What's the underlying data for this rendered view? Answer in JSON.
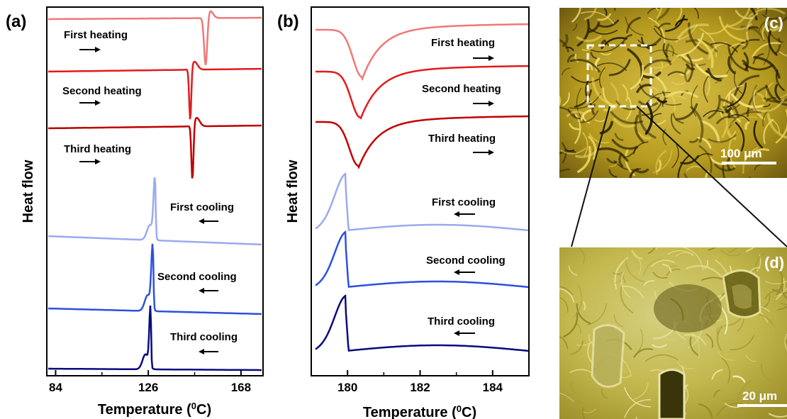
{
  "panels": {
    "a": "(a)",
    "b": "(b)",
    "c": "(c)",
    "d": "(d)"
  },
  "chart_data": [
    {
      "type": "line",
      "panel": "(a)",
      "xlabel": "Temperature (0C)",
      "xlabel_parts": {
        "pre": "Temperature (",
        "sup": "0",
        "post": "C)"
      },
      "ylabel": "Heat flow",
      "xlim": [
        80,
        178
      ],
      "xticks": [
        84,
        126,
        168
      ],
      "y_axis_values": false,
      "series": [
        {
          "name": "First heating",
          "direction": "→",
          "color": "#f07878",
          "kind": "endo",
          "peak_x": 152,
          "depth": 70,
          "width": 0.9
        },
        {
          "name": "Second heating",
          "direction": "→",
          "color": "#e41a1c",
          "kind": "endo",
          "peak_x": 145,
          "depth": 75,
          "width": 0.6
        },
        {
          "name": "Third heating",
          "direction": "→",
          "color": "#c00000",
          "kind": "endo",
          "peak_x": 146,
          "depth": 80,
          "width": 0.6
        },
        {
          "name": "First cooling",
          "direction": "←",
          "color": "#9aaaf0",
          "kind": "exo",
          "peak_x": 129,
          "height": 85,
          "width": 0.7
        },
        {
          "name": "Second cooling",
          "direction": "←",
          "color": "#2f4fe0",
          "kind": "exo",
          "peak_x": 128,
          "height": 90,
          "width": 0.7
        },
        {
          "name": "Third cooling",
          "direction": "←",
          "color": "#0a0a80",
          "kind": "exo",
          "peak_x": 127,
          "height": 85,
          "width": 0.6
        }
      ]
    },
    {
      "type": "line",
      "panel": "(b)",
      "xlabel": "Temperature (0C)",
      "xlabel_parts": {
        "pre": "Temperature (",
        "sup": "0",
        "post": "C)"
      },
      "ylabel": "Heat flow",
      "xlim": [
        179.0,
        185.0
      ],
      "xticks": [
        180,
        182,
        184
      ],
      "y_axis_values": false,
      "series": [
        {
          "name": "First heating",
          "direction": "→",
          "color": "#f07878",
          "kind": "endo",
          "peak_x": 180.4,
          "depth": 70
        },
        {
          "name": "Second heating",
          "direction": "→",
          "color": "#e41a1c",
          "kind": "endo",
          "peak_x": 180.35,
          "depth": 68
        },
        {
          "name": "Third heating",
          "direction": "→",
          "color": "#c00000",
          "kind": "endo",
          "peak_x": 180.3,
          "depth": 65
        },
        {
          "name": "First cooling",
          "direction": "←",
          "color": "#9aaaf0",
          "kind": "exo",
          "peak_x": 179.95,
          "height": 60
        },
        {
          "name": "Second cooling",
          "direction": "←",
          "color": "#2f4fe0",
          "kind": "exo",
          "peak_x": 179.95,
          "height": 58
        },
        {
          "name": "Third cooling",
          "direction": "←",
          "color": "#0a0a80",
          "kind": "exo",
          "peak_x": 179.95,
          "height": 58
        }
      ]
    }
  ],
  "micrographs": {
    "c": {
      "scale_bar": "100 μm"
    },
    "d": {
      "scale_bar": "20 μm"
    }
  }
}
